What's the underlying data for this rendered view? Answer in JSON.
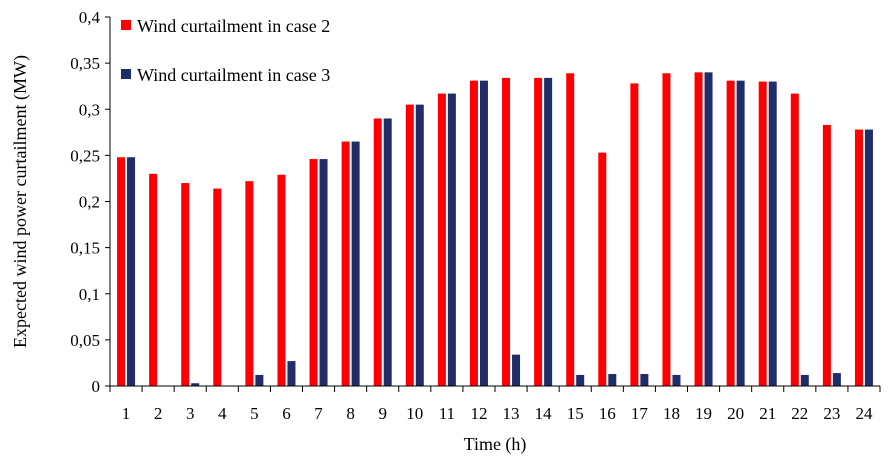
{
  "chart_data": {
    "type": "bar",
    "title": "",
    "xlabel": "Time (h)",
    "ylabel": "Expected wind power curtailment (MW)",
    "ylim": [
      0,
      0.4
    ],
    "yticks": [
      0,
      0.05,
      0.1,
      0.15,
      0.2,
      0.25,
      0.3,
      0.35,
      0.4
    ],
    "ytick_labels": [
      "0",
      "0,05",
      "0,1",
      "0,15",
      "0,2",
      "0,25",
      "0,3",
      "0,35",
      "0,4"
    ],
    "categories": [
      "1",
      "2",
      "3",
      "4",
      "5",
      "6",
      "7",
      "8",
      "9",
      "10",
      "11",
      "12",
      "13",
      "14",
      "15",
      "16",
      "17",
      "18",
      "19",
      "20",
      "21",
      "22",
      "23",
      "24"
    ],
    "grid": false,
    "legend": "top-left",
    "series": [
      {
        "name": "Wind curtailment in case 2",
        "color": "#ff0000",
        "values": [
          0.248,
          0.23,
          0.22,
          0.214,
          0.222,
          0.229,
          0.246,
          0.265,
          0.29,
          0.305,
          0.317,
          0.331,
          0.334,
          0.334,
          0.339,
          0.253,
          0.328,
          0.339,
          0.34,
          0.331,
          0.33,
          0.317,
          0.283,
          0.278
        ]
      },
      {
        "name": "Wind curtailment in case 3",
        "color": "#1f2d6b",
        "values": [
          0.248,
          0,
          0.003,
          0,
          0.012,
          0.027,
          0.246,
          0.265,
          0.29,
          0.305,
          0.317,
          0.331,
          0.034,
          0.334,
          0.012,
          0.013,
          0.013,
          0.012,
          0.34,
          0.331,
          0.33,
          0.012,
          0.014,
          0.278
        ]
      }
    ]
  }
}
